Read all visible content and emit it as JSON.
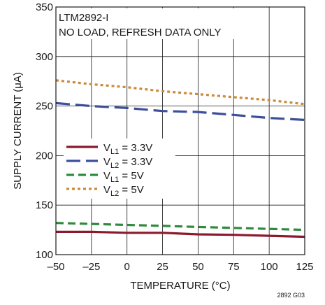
{
  "chart_data": {
    "type": "line",
    "title": "",
    "xlabel": "TEMPERATURE (°C)",
    "ylabel": "SUPPLY CURRENT (μA)",
    "xlim": [
      -50,
      125
    ],
    "ylim": [
      100,
      350
    ],
    "x_ticks": [
      -50,
      -25,
      0,
      25,
      50,
      75,
      100,
      125
    ],
    "x_tick_labels": [
      "–50",
      "–25",
      "0",
      "25",
      "50",
      "75",
      "100",
      "125"
    ],
    "y_ticks": [
      100,
      150,
      200,
      250,
      300,
      350
    ],
    "y_tick_labels": [
      "100",
      "150",
      "200",
      "250",
      "300",
      "350"
    ],
    "grid": true,
    "annotations": [
      "LTM2892-I",
      "NO LOAD, REFRESH DATA ONLY"
    ],
    "figure_id": "2892 G03",
    "legend_position": "center-left",
    "x": [
      -50,
      -25,
      0,
      25,
      50,
      75,
      100,
      125
    ],
    "series": [
      {
        "name": "V_L1 = 3.3V",
        "label_main": "V",
        "label_sub": "L1",
        "label_rest": " = 3.3V",
        "color": "#8b1a2e",
        "dash": "solid",
        "values": [
          123,
          123,
          122,
          122,
          120.5,
          120,
          119,
          118
        ]
      },
      {
        "name": "V_L2 = 3.3V",
        "label_main": "V",
        "label_sub": "L2",
        "label_rest": " = 3.3V",
        "color": "#3d4f9c",
        "dash": "longdash",
        "values": [
          253,
          250,
          248,
          245,
          244,
          241,
          238,
          236
        ]
      },
      {
        "name": "V_L1 = 5V",
        "label_main": "V",
        "label_sub": "L1",
        "label_rest": " = 5V",
        "color": "#2e8b3d",
        "dash": "dash",
        "values": [
          132,
          131,
          130,
          129,
          128,
          127,
          126,
          125
        ]
      },
      {
        "name": "V_L2 = 5V",
        "label_main": "V",
        "label_sub": "L2",
        "label_rest": " = 5V",
        "color": "#c98a3c",
        "dash": "dot",
        "values": [
          276,
          272,
          269,
          265,
          262,
          259,
          256,
          252
        ]
      }
    ]
  }
}
